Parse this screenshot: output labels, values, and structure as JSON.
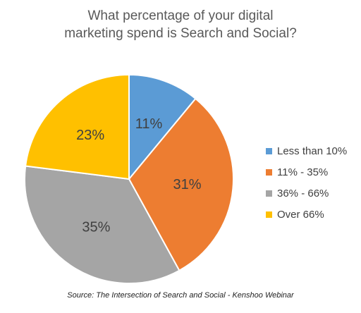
{
  "chart_data": {
    "type": "pie",
    "title_lines": [
      "What percentage of your digital",
      "marketing spend is Search and Social?"
    ],
    "categories": [
      "Less than 10%",
      "11% - 35%",
      "36% - 66%",
      "Over 66%"
    ],
    "values": [
      11,
      31,
      35,
      23
    ],
    "labels": [
      "11%",
      "31%",
      "35%",
      "23%"
    ],
    "colors": [
      "#5B9BD5",
      "#ED7D31",
      "#A5A5A5",
      "#FFC000"
    ],
    "legend_position": "right",
    "source": "Source: The Intersection of Search and Social - Kenshoo Webinar"
  }
}
